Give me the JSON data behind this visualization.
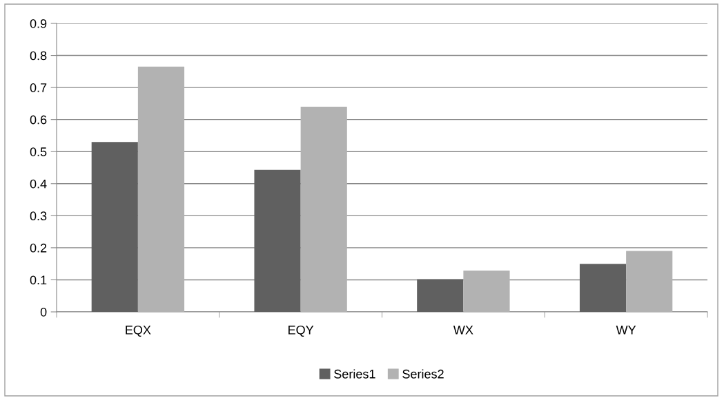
{
  "chart_data": {
    "type": "bar",
    "categories": [
      "EQX",
      "EQY",
      "WX",
      "WY"
    ],
    "series": [
      {
        "name": "Series1",
        "color": "#606060",
        "values": [
          0.53,
          0.443,
          0.102,
          0.15
        ]
      },
      {
        "name": "Series2",
        "color": "#b2b2b2",
        "values": [
          0.765,
          0.64,
          0.129,
          0.19
        ]
      }
    ],
    "ylim": [
      0,
      0.9
    ],
    "yticks": [
      0,
      {
        "value": 0.1,
        "label": "0.1"
      },
      {
        "value": 0.2,
        "label": "0.2"
      },
      {
        "value": 0.3,
        "label": "0.3"
      },
      {
        "value": 0.4,
        "label": "0.4"
      },
      {
        "value": 0.5,
        "label": "0.5"
      },
      {
        "value": 0.6,
        "label": "0.6"
      },
      {
        "value": 0.7,
        "label": "0.7"
      },
      {
        "value": 0.8,
        "label": "0.8"
      },
      {
        "value": 0.9,
        "label": "0.9"
      }
    ],
    "grid": "y",
    "legend": "bottom"
  }
}
